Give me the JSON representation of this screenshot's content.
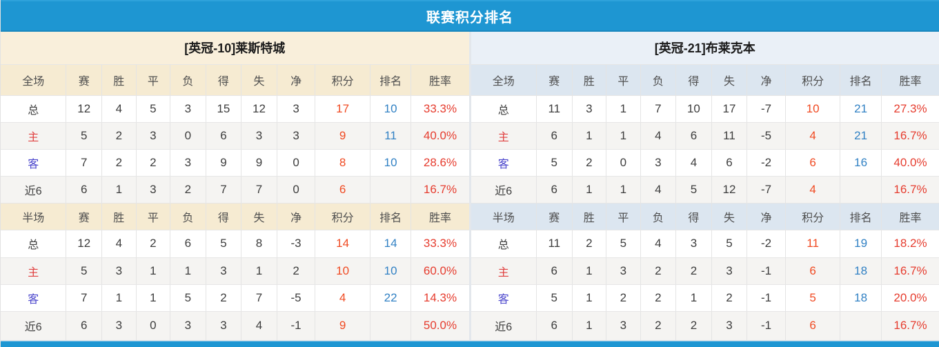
{
  "header": {
    "title": "联赛积分排名"
  },
  "columns": {
    "full_label": "全场",
    "half_label": "半场",
    "stats": [
      "赛",
      "胜",
      "平",
      "负",
      "得",
      "失",
      "净",
      "积分",
      "排名",
      "胜率"
    ]
  },
  "teams": [
    {
      "name": "[英冠-10]莱斯特城",
      "full_rows": [
        {
          "label": "总",
          "type": "total",
          "cells": [
            "12",
            "4",
            "5",
            "3",
            "15",
            "12",
            "3"
          ],
          "points": "17",
          "rank": "10",
          "rate": "33.3%"
        },
        {
          "label": "主",
          "type": "home",
          "cells": [
            "5",
            "2",
            "3",
            "0",
            "6",
            "3",
            "3"
          ],
          "points": "9",
          "rank": "11",
          "rate": "40.0%"
        },
        {
          "label": "客",
          "type": "away",
          "cells": [
            "7",
            "2",
            "2",
            "3",
            "9",
            "9",
            "0"
          ],
          "points": "8",
          "rank": "10",
          "rate": "28.6%"
        },
        {
          "label": "近6",
          "type": "recent",
          "cells": [
            "6",
            "1",
            "3",
            "2",
            "7",
            "7",
            "0"
          ],
          "points": "6",
          "rank": "",
          "rate": "16.7%"
        }
      ],
      "half_rows": [
        {
          "label": "总",
          "type": "total",
          "cells": [
            "12",
            "4",
            "2",
            "6",
            "5",
            "8",
            "-3"
          ],
          "points": "14",
          "rank": "14",
          "rate": "33.3%"
        },
        {
          "label": "主",
          "type": "home",
          "cells": [
            "5",
            "3",
            "1",
            "1",
            "3",
            "1",
            "2"
          ],
          "points": "10",
          "rank": "10",
          "rate": "60.0%"
        },
        {
          "label": "客",
          "type": "away",
          "cells": [
            "7",
            "1",
            "1",
            "5",
            "2",
            "7",
            "-5"
          ],
          "points": "4",
          "rank": "22",
          "rate": "14.3%"
        },
        {
          "label": "近6",
          "type": "recent",
          "cells": [
            "6",
            "3",
            "0",
            "3",
            "3",
            "4",
            "-1"
          ],
          "points": "9",
          "rank": "",
          "rate": "50.0%"
        }
      ]
    },
    {
      "name": "[英冠-21]布莱克本",
      "full_rows": [
        {
          "label": "总",
          "type": "total",
          "cells": [
            "11",
            "3",
            "1",
            "7",
            "10",
            "17",
            "-7"
          ],
          "points": "10",
          "rank": "21",
          "rate": "27.3%"
        },
        {
          "label": "主",
          "type": "home",
          "cells": [
            "6",
            "1",
            "1",
            "4",
            "6",
            "11",
            "-5"
          ],
          "points": "4",
          "rank": "21",
          "rate": "16.7%"
        },
        {
          "label": "客",
          "type": "away",
          "cells": [
            "5",
            "2",
            "0",
            "3",
            "4",
            "6",
            "-2"
          ],
          "points": "6",
          "rank": "16",
          "rate": "40.0%"
        },
        {
          "label": "近6",
          "type": "recent",
          "cells": [
            "6",
            "1",
            "1",
            "4",
            "5",
            "12",
            "-7"
          ],
          "points": "4",
          "rank": "",
          "rate": "16.7%"
        }
      ],
      "half_rows": [
        {
          "label": "总",
          "type": "total",
          "cells": [
            "11",
            "2",
            "5",
            "4",
            "3",
            "5",
            "-2"
          ],
          "points": "11",
          "rank": "19",
          "rate": "18.2%"
        },
        {
          "label": "主",
          "type": "home",
          "cells": [
            "6",
            "1",
            "3",
            "2",
            "2",
            "3",
            "-1"
          ],
          "points": "6",
          "rank": "18",
          "rate": "16.7%"
        },
        {
          "label": "客",
          "type": "away",
          "cells": [
            "5",
            "1",
            "2",
            "2",
            "1",
            "2",
            "-1"
          ],
          "points": "5",
          "rank": "18",
          "rate": "20.0%"
        },
        {
          "label": "近6",
          "type": "recent",
          "cells": [
            "6",
            "1",
            "3",
            "2",
            "2",
            "3",
            "-1"
          ],
          "points": "6",
          "rank": "",
          "rate": "16.7%"
        }
      ]
    }
  ],
  "colors": {
    "accent_blue": "#1e96d2",
    "cream_header": "#f9efdb",
    "cream_columns": "#f6ebd2",
    "blue_header": "#eaf0f7",
    "blue_columns": "#dce6f0",
    "points_text": "#f04a22",
    "rank_text": "#3181c4",
    "rate_text": "#e63c2e",
    "home_label": "#e03e3e",
    "away_label": "#4a45cc",
    "alt_row": "#f5f4f2"
  }
}
